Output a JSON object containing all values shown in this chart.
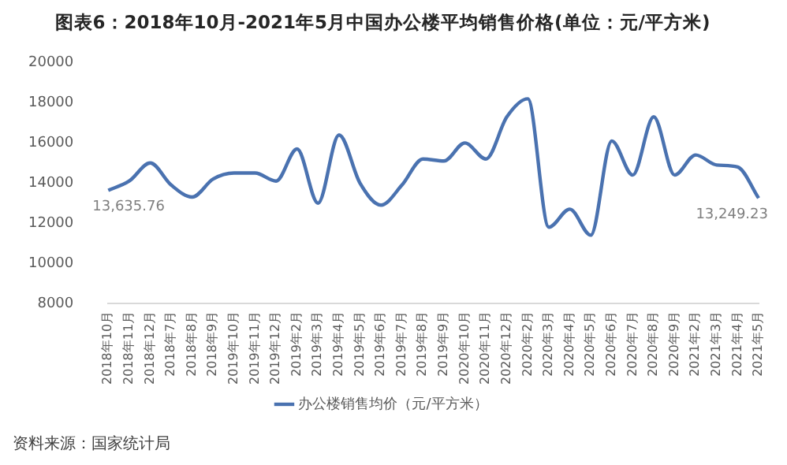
{
  "chart_data": {
    "type": "line",
    "title": "图表6：2018年10月-2021年5月中国办公楼平均销售价格(单位：元/平方米)",
    "categories": [
      "2018年10月",
      "2018年11月",
      "2018年12月",
      "2018年7月",
      "2018年8月",
      "2018年9月",
      "2019年10月",
      "2019年11月",
      "2019年12月",
      "2019年2月",
      "2019年3月",
      "2019年4月",
      "2019年5月",
      "2019年6月",
      "2019年7月",
      "2019年8月",
      "2019年9月",
      "2020年10月",
      "2020年11月",
      "2020年12月",
      "2020年2月",
      "2020年3月",
      "2020年4月",
      "2020年5月",
      "2020年6月",
      "2020年7月",
      "2020年8月",
      "2020年9月",
      "2021年2月",
      "2021年3月",
      "2021年4月",
      "2021年5月"
    ],
    "series": [
      {
        "name": "办公楼销售均价（元/平方米）",
        "color": "#4a72b0",
        "values": [
          13635.76,
          14100,
          15000,
          13900,
          13300,
          14200,
          14500,
          14500,
          14100,
          15700,
          13000,
          16400,
          14000,
          12900,
          13900,
          15200,
          15100,
          16000,
          15200,
          17300,
          18200,
          11800,
          12700,
          11400,
          16100,
          14400,
          17300,
          14400,
          15400,
          14900,
          14800,
          13249.23
        ]
      }
    ],
    "ylim": [
      8000,
      20000
    ],
    "yticks": [
      8000,
      10000,
      12000,
      14000,
      16000,
      18000,
      20000
    ],
    "grid": false,
    "legend": "bottom",
    "marker": "none",
    "annotations": [
      {
        "text": "13,635.76",
        "x": "2018年10月",
        "y": 13635.76
      },
      {
        "text": "13,249.23",
        "x": "2021年5月",
        "y": 13249.23
      },
      "资料来源：国家统计局"
    ]
  }
}
